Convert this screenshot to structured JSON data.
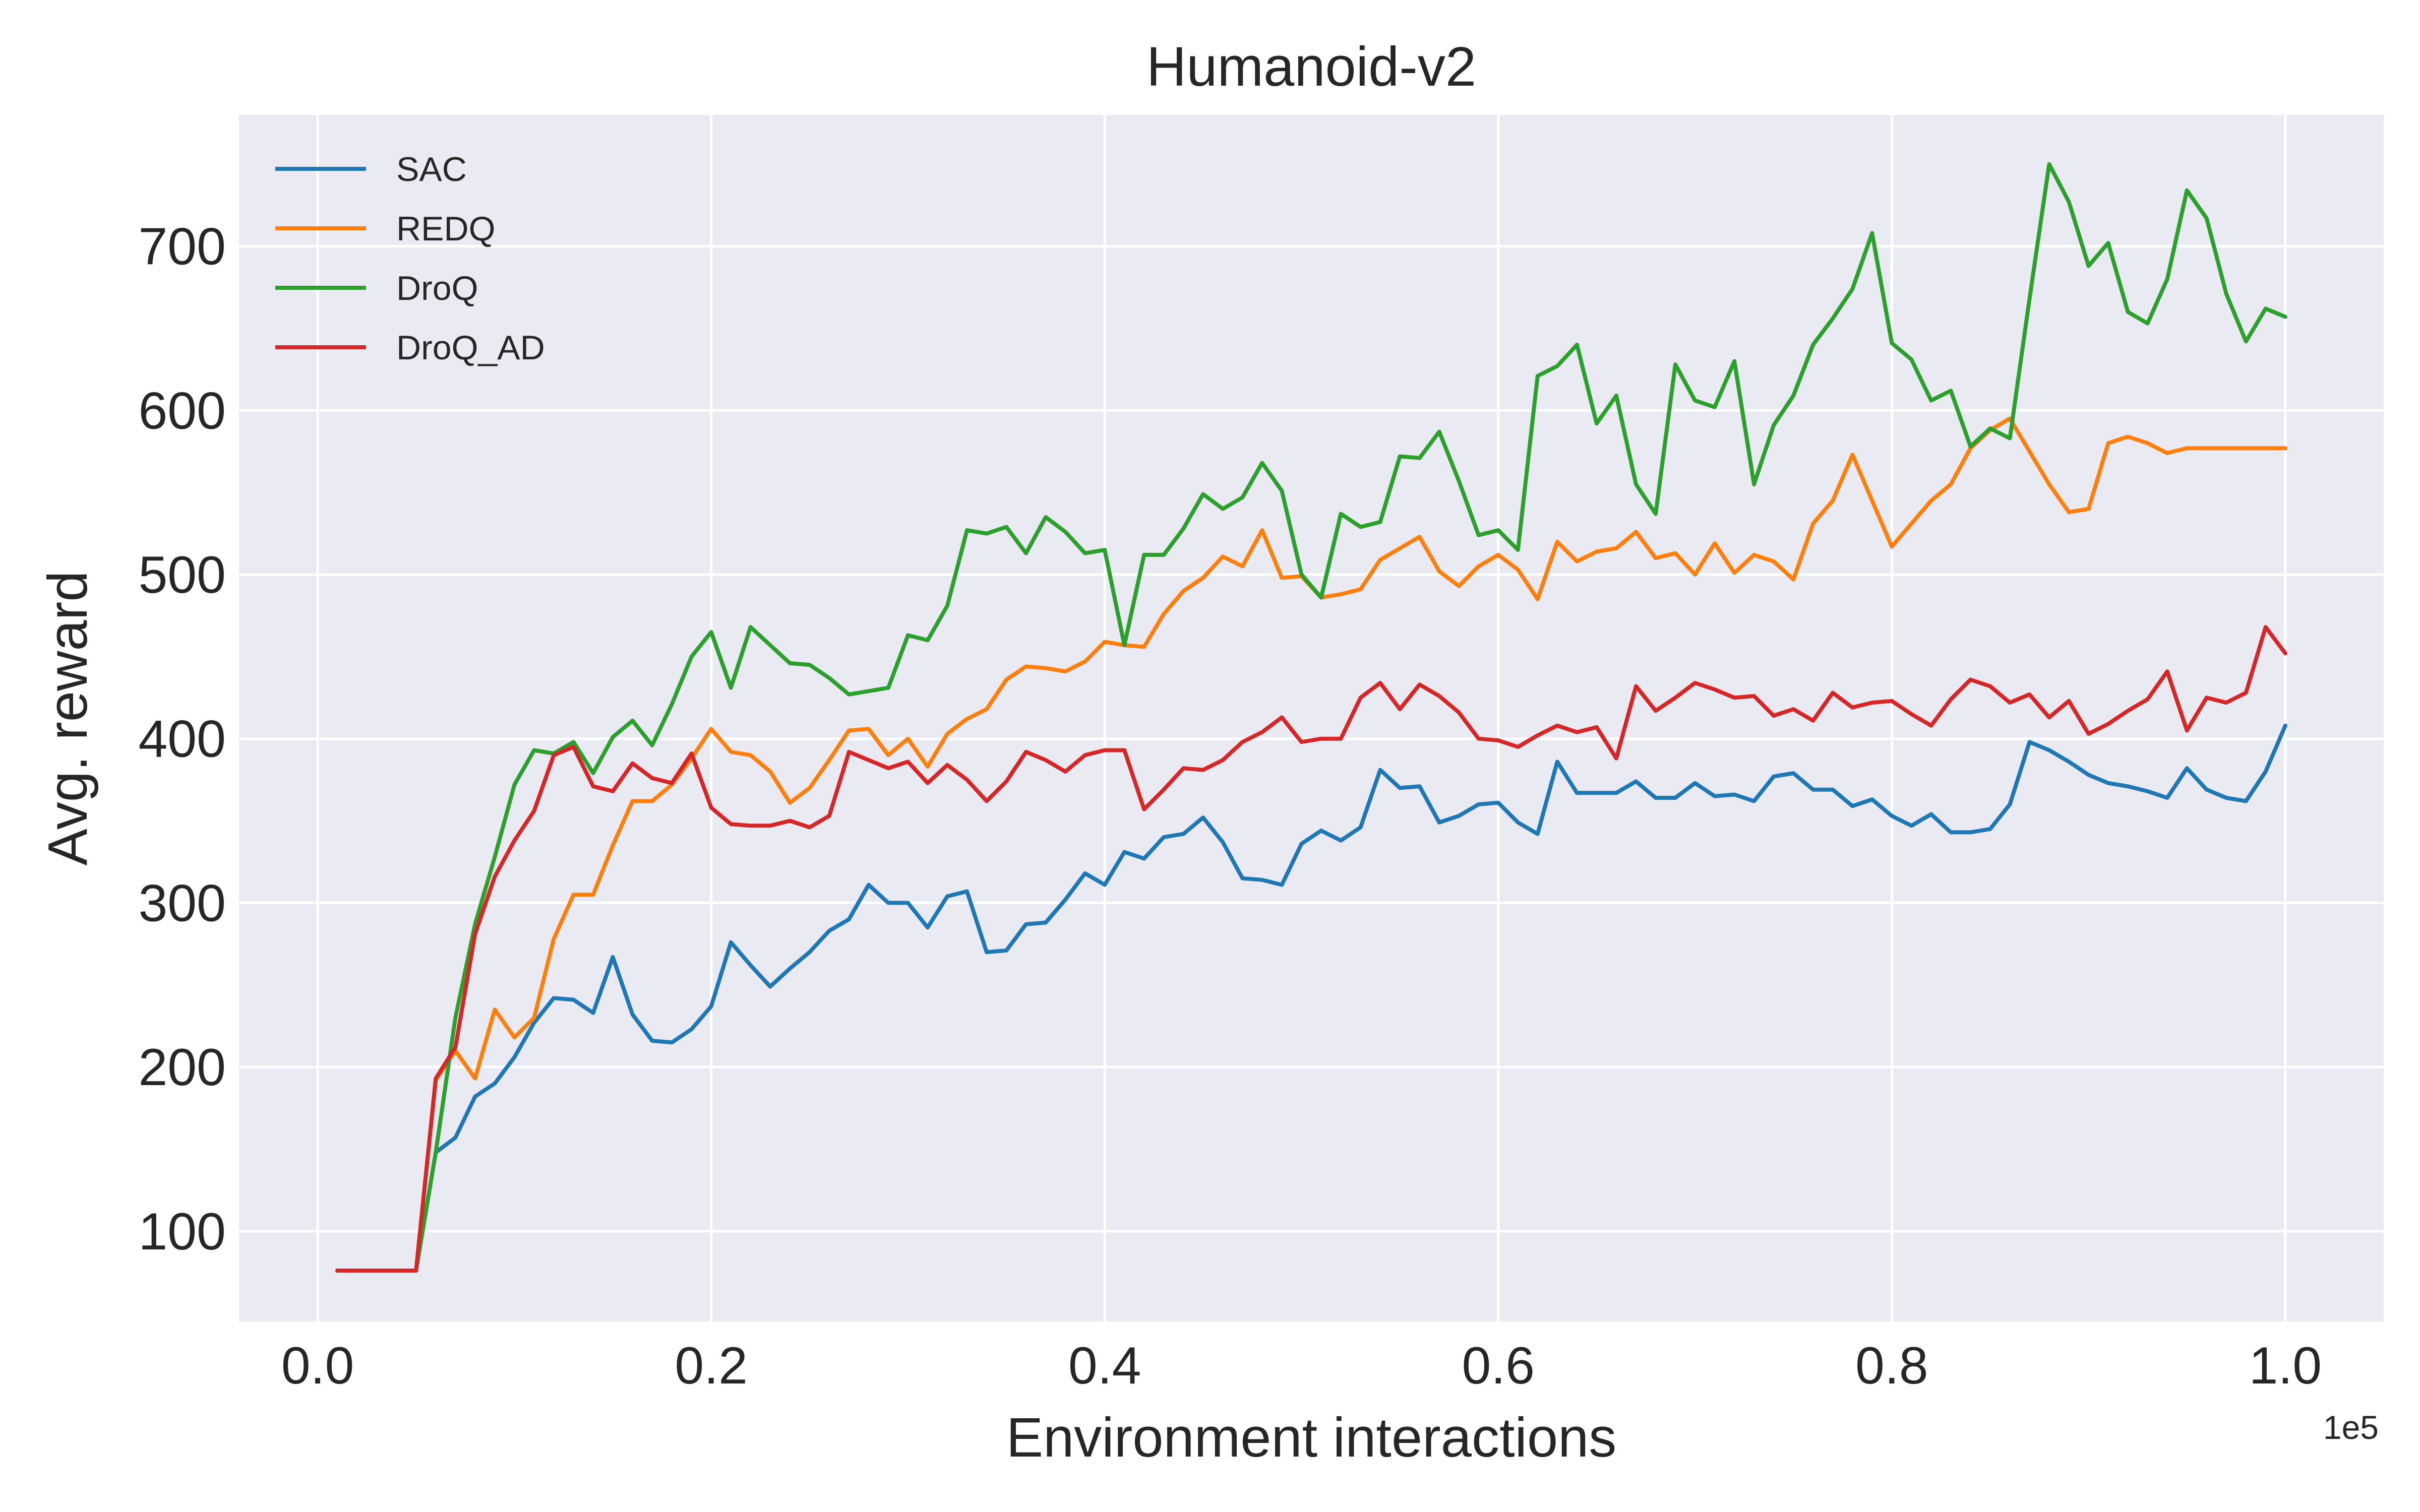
{
  "chart_data": {
    "type": "line",
    "title": "Humanoid-v2",
    "xlabel": "Environment interactions",
    "ylabel": "Avg. reward",
    "x_offset_label": "1e5",
    "xlim": [
      -0.04,
      1.05
    ],
    "ylim": [
      45,
      780
    ],
    "xticks": [
      0.0,
      0.2,
      0.4,
      0.6,
      0.8,
      1.0
    ],
    "xtick_labels": [
      "0.0",
      "0.2",
      "0.4",
      "0.6",
      "0.8",
      "1.0"
    ],
    "yticks": [
      100,
      200,
      300,
      400,
      500,
      600,
      700
    ],
    "ytick_labels": [
      "100",
      "200",
      "300",
      "400",
      "500",
      "600",
      "700"
    ],
    "grid": true,
    "legend_position": "top-left",
    "x_start": 0.01,
    "x_step": 0.01,
    "series": [
      {
        "name": "SAC",
        "color": "#1f77b4",
        "values": [
          76,
          76,
          76,
          76,
          76,
          148,
          157,
          182,
          190,
          206,
          227,
          242,
          241,
          233,
          267,
          232,
          216,
          215,
          223,
          237,
          276,
          262,
          249,
          260,
          270,
          283,
          290,
          311,
          300,
          300,
          285,
          304,
          307,
          270,
          271,
          287,
          288,
          302,
          318,
          311,
          331,
          327,
          340,
          342,
          352,
          337,
          315,
          314,
          311,
          336,
          344,
          338,
          346,
          381,
          370,
          371,
          349,
          353,
          360,
          361,
          349,
          342,
          386,
          367,
          367,
          367,
          374,
          364,
          364,
          373,
          365,
          366,
          362,
          377,
          379,
          369,
          369,
          359,
          363,
          353,
          347,
          354,
          343,
          343,
          345,
          360,
          398,
          393,
          386,
          378,
          373,
          371,
          368,
          364,
          382,
          369,
          364,
          362,
          380,
          408
        ]
      },
      {
        "name": "REDQ",
        "color": "#ff7f0e",
        "values": [
          76,
          76,
          76,
          76,
          76,
          192,
          210,
          193,
          235,
          218,
          230,
          278,
          305,
          305,
          335,
          362,
          362,
          372,
          388,
          406,
          392,
          390,
          380,
          361,
          370,
          387,
          405,
          406,
          390,
          400,
          383,
          403,
          412,
          418,
          436,
          444,
          443,
          441,
          447,
          459,
          457,
          456,
          476,
          490,
          498,
          511,
          505,
          527,
          498,
          499,
          486,
          488,
          491,
          509,
          516,
          523,
          502,
          493,
          505,
          512,
          503,
          485,
          520,
          508,
          514,
          516,
          526,
          510,
          513,
          500,
          519,
          501,
          512,
          508,
          497,
          531,
          545,
          573,
          545,
          517,
          531,
          545,
          555,
          577,
          588,
          595,
          575,
          555,
          538,
          540,
          580,
          584,
          580,
          574,
          577,
          577,
          577,
          577,
          577,
          577
        ]
      },
      {
        "name": "DroQ",
        "color": "#2ca02c",
        "values": [
          76,
          76,
          76,
          76,
          76,
          148,
          230,
          287,
          328,
          372,
          393,
          391,
          398,
          379,
          401,
          411,
          396,
          421,
          450,
          465,
          431,
          468,
          457,
          446,
          445,
          437,
          427,
          429,
          431,
          463,
          460,
          481,
          527,
          525,
          529,
          513,
          535,
          526,
          513,
          515,
          457,
          512,
          512,
          528,
          549,
          540,
          547,
          568,
          551,
          500,
          486,
          537,
          529,
          532,
          572,
          571,
          587,
          557,
          524,
          527,
          515,
          621,
          627,
          640,
          592,
          609,
          555,
          537,
          628,
          606,
          602,
          630,
          555,
          591,
          609,
          640,
          656,
          674,
          708,
          641,
          631,
          606,
          612,
          578,
          589,
          583,
          668,
          750,
          727,
          688,
          702,
          660,
          653,
          680,
          734,
          717,
          671,
          642,
          662,
          657
        ]
      },
      {
        "name": "DroQ_AD",
        "color": "#d62728",
        "values": [
          76,
          76,
          76,
          76,
          76,
          193,
          212,
          281,
          316,
          338,
          356,
          390,
          395,
          371,
          368,
          385,
          376,
          373,
          391,
          358,
          348,
          347,
          347,
          350,
          346,
          353,
          392,
          387,
          382,
          386,
          373,
          384,
          375,
          362,
          374,
          392,
          387,
          380,
          390,
          393,
          393,
          357,
          369,
          382,
          381,
          387,
          398,
          404,
          413,
          398,
          400,
          400,
          425,
          434,
          418,
          433,
          426,
          416,
          400,
          399,
          395,
          402,
          408,
          404,
          407,
          388,
          432,
          417,
          425,
          434,
          430,
          425,
          426,
          414,
          418,
          411,
          428,
          419,
          422,
          423,
          415,
          408,
          424,
          436,
          432,
          422,
          427,
          413,
          423,
          403,
          409,
          417,
          424,
          441,
          405,
          425,
          422,
          428,
          468,
          452
        ]
      }
    ]
  }
}
